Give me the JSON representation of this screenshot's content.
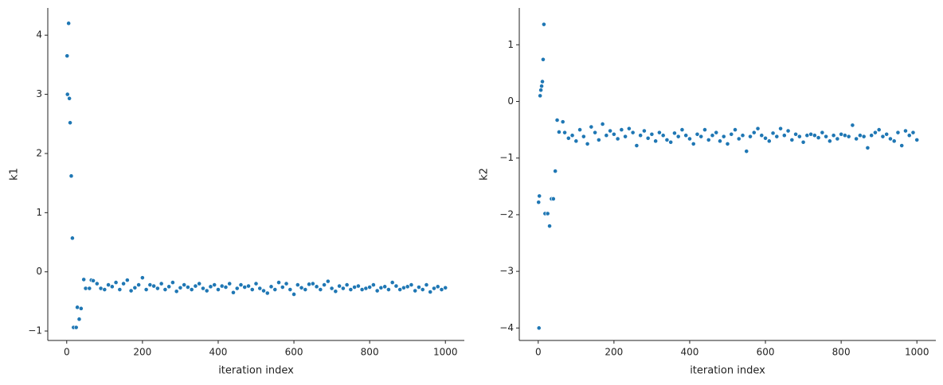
{
  "chart_data": [
    {
      "type": "scatter",
      "xlabel": "iteration index",
      "ylabel": "k1",
      "color": "#1f77b4",
      "xlim": [
        -50,
        1050
      ],
      "ylim": [
        -1.16,
        4.46
      ],
      "xticks": [
        0,
        200,
        400,
        600,
        800,
        1000
      ],
      "yticks": [
        {
          "value": -1,
          "label": "−1"
        },
        0,
        1,
        2,
        3,
        4
      ],
      "x": [
        1,
        2,
        5,
        7,
        9,
        12,
        15,
        18,
        25,
        28,
        33,
        38,
        45,
        50,
        60,
        65,
        70,
        80,
        90,
        100,
        110,
        120,
        130,
        140,
        150,
        160,
        170,
        180,
        190,
        200,
        210,
        220,
        230,
        240,
        250,
        260,
        270,
        280,
        290,
        300,
        310,
        320,
        330,
        340,
        350,
        360,
        370,
        380,
        390,
        400,
        410,
        420,
        430,
        440,
        450,
        460,
        470,
        480,
        490,
        500,
        510,
        520,
        530,
        540,
        550,
        560,
        570,
        580,
        590,
        600,
        610,
        620,
        630,
        640,
        650,
        660,
        670,
        680,
        690,
        700,
        710,
        720,
        730,
        740,
        750,
        760,
        770,
        780,
        790,
        800,
        810,
        820,
        830,
        840,
        850,
        860,
        870,
        880,
        890,
        900,
        910,
        920,
        930,
        940,
        950,
        960,
        970,
        980,
        990,
        1000
      ],
      "values": [
        3.65,
        3.0,
        4.2,
        2.93,
        2.52,
        1.62,
        0.57,
        -0.94,
        -0.94,
        -0.6,
        -0.8,
        -0.62,
        -0.13,
        -0.28,
        -0.28,
        -0.14,
        -0.15,
        -0.2,
        -0.28,
        -0.3,
        -0.22,
        -0.25,
        -0.18,
        -0.3,
        -0.2,
        -0.14,
        -0.32,
        -0.27,
        -0.22,
        -0.1,
        -0.3,
        -0.22,
        -0.24,
        -0.28,
        -0.2,
        -0.3,
        -0.25,
        -0.18,
        -0.33,
        -0.27,
        -0.22,
        -0.26,
        -0.3,
        -0.24,
        -0.2,
        -0.28,
        -0.32,
        -0.25,
        -0.22,
        -0.3,
        -0.24,
        -0.26,
        -0.2,
        -0.35,
        -0.28,
        -0.22,
        -0.26,
        -0.24,
        -0.3,
        -0.2,
        -0.28,
        -0.32,
        -0.36,
        -0.25,
        -0.3,
        -0.18,
        -0.26,
        -0.2,
        -0.3,
        -0.38,
        -0.22,
        -0.27,
        -0.3,
        -0.21,
        -0.2,
        -0.25,
        -0.3,
        -0.22,
        -0.16,
        -0.28,
        -0.33,
        -0.24,
        -0.28,
        -0.22,
        -0.3,
        -0.26,
        -0.24,
        -0.3,
        -0.28,
        -0.26,
        -0.22,
        -0.32,
        -0.27,
        -0.25,
        -0.3,
        -0.18,
        -0.24,
        -0.3,
        -0.27,
        -0.25,
        -0.22,
        -0.32,
        -0.26,
        -0.3,
        -0.22,
        -0.34,
        -0.28,
        -0.25,
        -0.3,
        -0.27
      ]
    },
    {
      "type": "scatter",
      "xlabel": "iteration index",
      "ylabel": "k2",
      "color": "#1f77b4",
      "xlim": [
        -50,
        1050
      ],
      "ylim": [
        -4.22,
        1.65
      ],
      "xticks": [
        0,
        200,
        400,
        600,
        800,
        1000
      ],
      "yticks": [
        {
          "value": -4,
          "label": "−4"
        },
        {
          "value": -3,
          "label": "−3"
        },
        {
          "value": -2,
          "label": "−2"
        },
        {
          "value": -1,
          "label": "−1"
        },
        0,
        1
      ],
      "x": [
        1,
        2,
        3,
        5,
        7,
        9,
        11,
        13,
        15,
        18,
        25,
        30,
        35,
        40,
        45,
        50,
        55,
        65,
        70,
        80,
        90,
        100,
        110,
        120,
        130,
        140,
        150,
        160,
        170,
        180,
        190,
        200,
        210,
        220,
        230,
        240,
        250,
        260,
        270,
        280,
        290,
        300,
        310,
        320,
        330,
        340,
        350,
        360,
        370,
        380,
        390,
        400,
        410,
        420,
        430,
        440,
        450,
        460,
        470,
        480,
        490,
        500,
        510,
        520,
        530,
        540,
        550,
        560,
        570,
        580,
        590,
        600,
        610,
        620,
        630,
        640,
        650,
        660,
        670,
        680,
        690,
        700,
        710,
        720,
        730,
        740,
        750,
        760,
        770,
        780,
        790,
        800,
        810,
        820,
        830,
        840,
        850,
        860,
        870,
        880,
        890,
        900,
        910,
        920,
        930,
        940,
        950,
        960,
        970,
        980,
        990,
        1000
      ],
      "values": [
        -1.78,
        -4.0,
        -1.67,
        0.1,
        0.2,
        0.27,
        0.35,
        0.74,
        1.36,
        -1.98,
        -1.98,
        -2.2,
        -1.72,
        -1.72,
        -1.23,
        -0.33,
        -0.54,
        -0.36,
        -0.55,
        -0.65,
        -0.6,
        -0.7,
        -0.5,
        -0.62,
        -0.75,
        -0.45,
        -0.55,
        -0.68,
        -0.4,
        -0.6,
        -0.52,
        -0.58,
        -0.66,
        -0.5,
        -0.62,
        -0.48,
        -0.55,
        -0.78,
        -0.6,
        -0.52,
        -0.65,
        -0.58,
        -0.7,
        -0.55,
        -0.6,
        -0.68,
        -0.72,
        -0.56,
        -0.62,
        -0.5,
        -0.6,
        -0.66,
        -0.75,
        -0.58,
        -0.62,
        -0.5,
        -0.68,
        -0.6,
        -0.55,
        -0.7,
        -0.62,
        -0.75,
        -0.58,
        -0.5,
        -0.66,
        -0.6,
        -0.88,
        -0.62,
        -0.55,
        -0.48,
        -0.6,
        -0.65,
        -0.7,
        -0.56,
        -0.62,
        -0.48,
        -0.6,
        -0.52,
        -0.68,
        -0.58,
        -0.62,
        -0.72,
        -0.6,
        -0.58,
        -0.6,
        -0.64,
        -0.55,
        -0.62,
        -0.7,
        -0.6,
        -0.66,
        -0.58,
        -0.6,
        -0.62,
        -0.42,
        -0.66,
        -0.6,
        -0.62,
        -0.82,
        -0.6,
        -0.55,
        -0.5,
        -0.62,
        -0.58,
        -0.66,
        -0.7,
        -0.55,
        -0.78,
        -0.52,
        -0.6,
        -0.55,
        -0.68
      ]
    }
  ]
}
